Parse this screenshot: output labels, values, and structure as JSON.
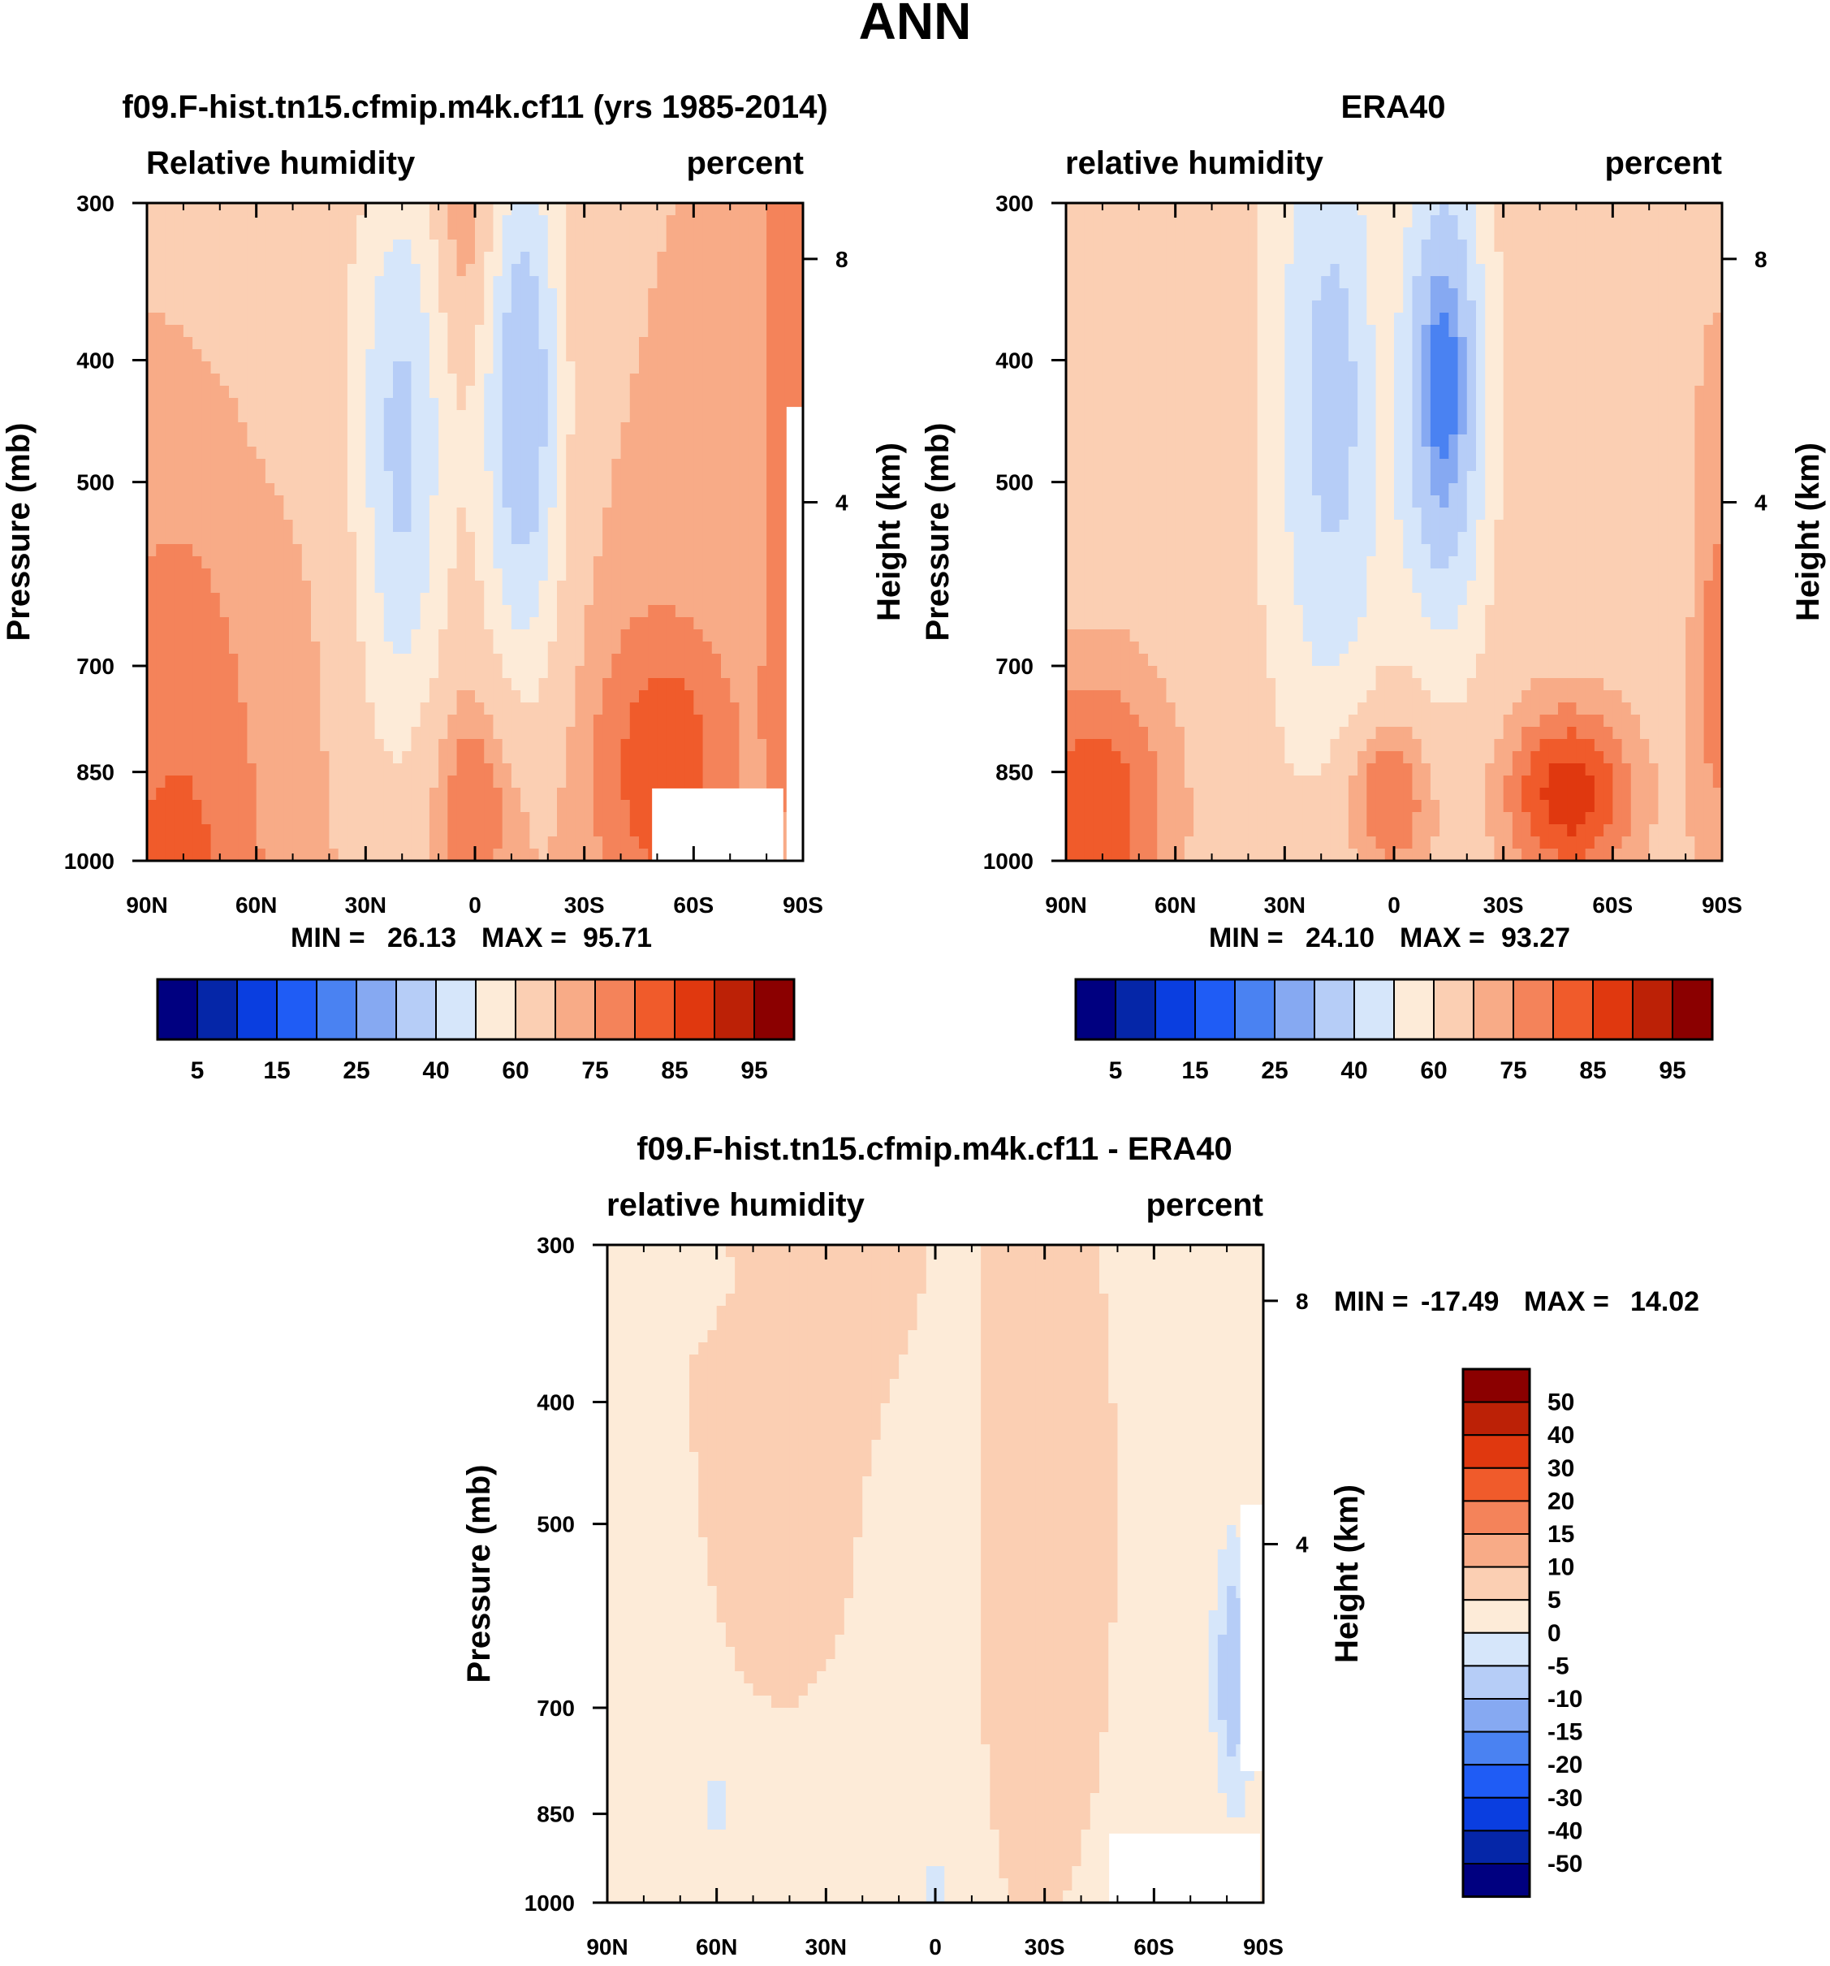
{
  "main_title": "ANN",
  "colors": {
    "abs_palette": [
      "#000080",
      "#0526a8",
      "#0a3ee0",
      "#1f5cf5",
      "#4a82f2",
      "#86a9f2",
      "#b6cdf7",
      "#d6e6fa",
      "#fdebd8",
      "#fbcfb3",
      "#f8ab87",
      "#f4835a",
      "#f05b2b",
      "#e0380f",
      "#bc2106",
      "#8b0000"
    ],
    "diff_palette": [
      "#000080",
      "#0526a8",
      "#0a3ee0",
      "#1f5cf5",
      "#4a82f2",
      "#86a9f2",
      "#b6cdf7",
      "#d6e6fa",
      "#fdebd8",
      "#fbcfb3",
      "#f8ab87",
      "#f4835a",
      "#f05b2b",
      "#e0380f",
      "#bc2106",
      "#8b0000"
    ]
  },
  "chart_data": [
    {
      "type": "heatmap",
      "title": "f09.F-hist.tn15.cfmip.m4k.cf11 (yrs 1985-2014)",
      "left_subtitle": "Relative humidity",
      "right_subtitle": "percent",
      "xlabel": "",
      "ylabel": "Pressure (mb)",
      "ylabel_right": "Height (km)",
      "x_ticks": [
        "90N",
        "60N",
        "30N",
        "0",
        "30S",
        "60S",
        "90S"
      ],
      "y_ticks": [
        "300",
        "400",
        "500",
        "700",
        "850",
        "1000"
      ],
      "height_ticks": [
        "8",
        "4"
      ],
      "stats": {
        "min_label": "MIN =",
        "min": "26.13",
        "max_label": "MAX =",
        "max": "95.71"
      },
      "colorbar_labels": [
        "5",
        "15",
        "25",
        "40",
        "60",
        "75",
        "85",
        "95"
      ],
      "field": "model"
    },
    {
      "type": "heatmap",
      "title": "ERA40",
      "left_subtitle": "relative humidity",
      "right_subtitle": "percent",
      "xlabel": "",
      "ylabel": "Pressure (mb)",
      "ylabel_right": "Height (km)",
      "x_ticks": [
        "90N",
        "60N",
        "30N",
        "0",
        "30S",
        "60S",
        "90S"
      ],
      "y_ticks": [
        "300",
        "400",
        "500",
        "700",
        "850",
        "1000"
      ],
      "height_ticks": [
        "8",
        "4"
      ],
      "stats": {
        "min_label": "MIN =",
        "min": "24.10",
        "max_label": "MAX =",
        "max": "93.27"
      },
      "colorbar_labels": [
        "5",
        "15",
        "25",
        "40",
        "60",
        "75",
        "85",
        "95"
      ],
      "field": "obs"
    },
    {
      "type": "heatmap",
      "title": "f09.F-hist.tn15.cfmip.m4k.cf11 - ERA40",
      "left_subtitle": "relative humidity",
      "right_subtitle": "percent",
      "xlabel": "",
      "ylabel": "Pressure (mb)",
      "ylabel_right": "Height (km)",
      "x_ticks": [
        "90N",
        "60N",
        "30N",
        "0",
        "30S",
        "60S",
        "90S"
      ],
      "y_ticks": [
        "300",
        "400",
        "500",
        "700",
        "850",
        "1000"
      ],
      "height_ticks": [
        "8",
        "4"
      ],
      "stats": {
        "min_label": "MIN =",
        "min": "-17.49",
        "max_label": "MAX =",
        "max": "14.02"
      },
      "colorbar_labels": [
        "50",
        "40",
        "30",
        "20",
        "15",
        "10",
        "5",
        "0",
        "-5",
        "-10",
        "-15",
        "-20",
        "-30",
        "-40",
        "-50"
      ],
      "field": "diff"
    }
  ]
}
